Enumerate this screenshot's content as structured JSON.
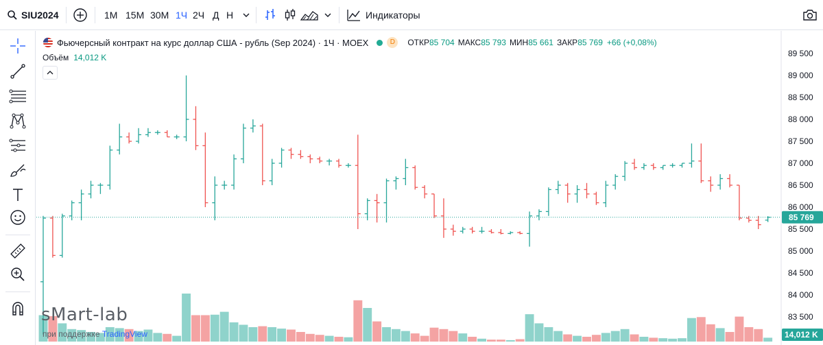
{
  "toolbar": {
    "symbol": "SIU2024",
    "intervals": [
      "1M",
      "15M",
      "30M",
      "1Ч",
      "2Ч",
      "Д",
      "Н"
    ],
    "active_interval": "1Ч",
    "indicators_label": "Индикаторы"
  },
  "sidebar": {
    "tools": [
      "crosshair-icon",
      "trendline-icon",
      "fib-icon",
      "pattern-icon",
      "forecast-icon",
      "brush-icon",
      "text-icon",
      "emoji-icon",
      "ruler-icon",
      "zoom-icon",
      "magnet-icon"
    ]
  },
  "legend": {
    "title": "Фьючерсный контракт на курс доллар США - рубль (Sep 2024) · 1Ч · MOEX",
    "badge": "D",
    "open_label": "ОТКР",
    "open": "85 704",
    "high_label": "МАКС",
    "high": "85 793",
    "low_label": "МИН",
    "low": "85 661",
    "close_label": "ЗАКР",
    "close": "85 769",
    "change": "+66 (+0,08%)",
    "volume_label": "Объём",
    "volume": "14,012 K"
  },
  "watermark": "sMart-lab",
  "support": {
    "prefix": "при поддержке ",
    "brand": "TradingView"
  },
  "colors": {
    "up": "#26a69a",
    "down": "#ef5350",
    "vol_up": "#8fd3cb",
    "vol_down": "#f4a3a3",
    "price_line": "#26a69a",
    "accent": "#2962ff"
  },
  "chart_data": {
    "type": "ohlc",
    "y_axis": {
      "min": 83000,
      "max": 89500,
      "ticks": [
        "89500",
        "89000",
        "88500",
        "88000",
        "87500",
        "87000",
        "86500",
        "86000",
        "85500",
        "85000",
        "84500",
        "84000",
        "83500"
      ]
    },
    "last_price_label": "85 769",
    "last_price": 85769,
    "volume_badge": "14,012 K",
    "bars": [
      {
        "o": 84300,
        "h": 85800,
        "l": 83100,
        "c": 85750,
        "v": 0.55
      },
      {
        "o": 85750,
        "h": 85800,
        "l": 84850,
        "c": 84900,
        "v": 0.53
      },
      {
        "o": 84900,
        "h": 85850,
        "l": 84850,
        "c": 85800,
        "v": 0.38
      },
      {
        "o": 85800,
        "h": 86150,
        "l": 85700,
        "c": 86100,
        "v": 0.26
      },
      {
        "o": 86100,
        "h": 86400,
        "l": 85700,
        "c": 86300,
        "v": 0.24
      },
      {
        "o": 86300,
        "h": 86600,
        "l": 86200,
        "c": 86500,
        "v": 0.2
      },
      {
        "o": 86500,
        "h": 86550,
        "l": 86300,
        "c": 86500,
        "v": 0.18
      },
      {
        "o": 86500,
        "h": 87400,
        "l": 86400,
        "c": 87300,
        "v": 0.3
      },
      {
        "o": 87300,
        "h": 87900,
        "l": 87200,
        "c": 87600,
        "v": 0.28
      },
      {
        "o": 87600,
        "h": 87700,
        "l": 87450,
        "c": 87500,
        "v": 0.26
      },
      {
        "o": 87500,
        "h": 87800,
        "l": 87450,
        "c": 87650,
        "v": 0.22
      },
      {
        "o": 87650,
        "h": 87800,
        "l": 87600,
        "c": 87700,
        "v": 0.25
      },
      {
        "o": 87700,
        "h": 87750,
        "l": 87650,
        "c": 87700,
        "v": 0.18
      },
      {
        "o": 87700,
        "h": 87750,
        "l": 87600,
        "c": 87600,
        "v": 0.16
      },
      {
        "o": 87600,
        "h": 87650,
        "l": 87550,
        "c": 87600,
        "v": 0.12
      },
      {
        "o": 87600,
        "h": 89000,
        "l": 87500,
        "c": 88000,
        "v": 1.0
      },
      {
        "o": 88000,
        "h": 88300,
        "l": 87300,
        "c": 87400,
        "v": 0.55
      },
      {
        "o": 87400,
        "h": 87700,
        "l": 86000,
        "c": 86100,
        "v": 0.55
      },
      {
        "o": 86100,
        "h": 86700,
        "l": 85700,
        "c": 86500,
        "v": 0.56
      },
      {
        "o": 86500,
        "h": 86600,
        "l": 86400,
        "c": 86500,
        "v": 0.62
      },
      {
        "o": 86500,
        "h": 87200,
        "l": 86400,
        "c": 87100,
        "v": 0.4
      },
      {
        "o": 87100,
        "h": 87900,
        "l": 87000,
        "c": 87800,
        "v": 0.35
      },
      {
        "o": 87800,
        "h": 88000,
        "l": 87700,
        "c": 87850,
        "v": 0.3
      },
      {
        "o": 87850,
        "h": 87900,
        "l": 86500,
        "c": 86600,
        "v": 0.32
      },
      {
        "o": 86600,
        "h": 87100,
        "l": 86500,
        "c": 87000,
        "v": 0.3
      },
      {
        "o": 87000,
        "h": 87350,
        "l": 86900,
        "c": 87300,
        "v": 0.27
      },
      {
        "o": 87300,
        "h": 87350,
        "l": 87100,
        "c": 87200,
        "v": 0.25
      },
      {
        "o": 87200,
        "h": 87300,
        "l": 87100,
        "c": 87150,
        "v": 0.2
      },
      {
        "o": 87150,
        "h": 87200,
        "l": 87000,
        "c": 87100,
        "v": 0.16
      },
      {
        "o": 87100,
        "h": 87150,
        "l": 87000,
        "c": 87050,
        "v": 0.14
      },
      {
        "o": 87050,
        "h": 87100,
        "l": 86950,
        "c": 87050,
        "v": 0.12
      },
      {
        "o": 87050,
        "h": 87100,
        "l": 86900,
        "c": 86950,
        "v": 0.1
      },
      {
        "o": 86950,
        "h": 87000,
        "l": 86900,
        "c": 86950,
        "v": 0.09
      },
      {
        "o": 86950,
        "h": 87650,
        "l": 85500,
        "c": 85850,
        "v": 0.86
      },
      {
        "o": 85850,
        "h": 86200,
        "l": 85700,
        "c": 86150,
        "v": 0.7
      },
      {
        "o": 86150,
        "h": 86300,
        "l": 85650,
        "c": 86100,
        "v": 0.42
      },
      {
        "o": 86100,
        "h": 86650,
        "l": 85650,
        "c": 86600,
        "v": 0.3
      },
      {
        "o": 86600,
        "h": 86700,
        "l": 86400,
        "c": 86650,
        "v": 0.26
      },
      {
        "o": 86650,
        "h": 87100,
        "l": 86500,
        "c": 86900,
        "v": 0.22
      },
      {
        "o": 86900,
        "h": 86950,
        "l": 86400,
        "c": 86450,
        "v": 0.17
      },
      {
        "o": 86450,
        "h": 86500,
        "l": 86200,
        "c": 86300,
        "v": 0.12
      },
      {
        "o": 86300,
        "h": 86300,
        "l": 85750,
        "c": 85800,
        "v": 0.29
      },
      {
        "o": 85800,
        "h": 86200,
        "l": 85300,
        "c": 85500,
        "v": 0.26
      },
      {
        "o": 85500,
        "h": 85600,
        "l": 85350,
        "c": 85450,
        "v": 0.22
      },
      {
        "o": 85450,
        "h": 85550,
        "l": 85400,
        "c": 85500,
        "v": 0.17
      },
      {
        "o": 85500,
        "h": 85550,
        "l": 85400,
        "c": 85450,
        "v": 0.1
      },
      {
        "o": 85450,
        "h": 85550,
        "l": 85400,
        "c": 85450,
        "v": 0.06
      },
      {
        "o": 85450,
        "h": 85500,
        "l": 85400,
        "c": 85420,
        "v": 0.04
      },
      {
        "o": 85420,
        "h": 85500,
        "l": 85380,
        "c": 85400,
        "v": 0.04
      },
      {
        "o": 85400,
        "h": 85450,
        "l": 85380,
        "c": 85420,
        "v": 0.03
      },
      {
        "o": 85420,
        "h": 85450,
        "l": 85380,
        "c": 85400,
        "v": 0.05
      },
      {
        "o": 85400,
        "h": 85900,
        "l": 85100,
        "c": 85800,
        "v": 0.57
      },
      {
        "o": 85800,
        "h": 85950,
        "l": 85700,
        "c": 85900,
        "v": 0.38
      },
      {
        "o": 85900,
        "h": 86450,
        "l": 85800,
        "c": 86400,
        "v": 0.3
      },
      {
        "o": 86400,
        "h": 86600,
        "l": 86300,
        "c": 86500,
        "v": 0.22
      },
      {
        "o": 86500,
        "h": 86550,
        "l": 86100,
        "c": 86300,
        "v": 0.15
      },
      {
        "o": 86300,
        "h": 86500,
        "l": 86100,
        "c": 86400,
        "v": 0.12
      },
      {
        "o": 86400,
        "h": 86550,
        "l": 86200,
        "c": 86300,
        "v": 0.1
      },
      {
        "o": 86300,
        "h": 86350,
        "l": 86050,
        "c": 86100,
        "v": 0.14
      },
      {
        "o": 86100,
        "h": 86600,
        "l": 86000,
        "c": 86500,
        "v": 0.18
      },
      {
        "o": 86500,
        "h": 86750,
        "l": 86400,
        "c": 86700,
        "v": 0.22
      },
      {
        "o": 86700,
        "h": 87050,
        "l": 86600,
        "c": 87000,
        "v": 0.26
      },
      {
        "o": 87000,
        "h": 87100,
        "l": 86850,
        "c": 86900,
        "v": 0.15
      },
      {
        "o": 86900,
        "h": 87000,
        "l": 86850,
        "c": 86950,
        "v": 0.1
      },
      {
        "o": 86950,
        "h": 87000,
        "l": 86850,
        "c": 86900,
        "v": 0.08
      },
      {
        "o": 86900,
        "h": 86950,
        "l": 86850,
        "c": 86950,
        "v": 0.07
      },
      {
        "o": 86950,
        "h": 87000,
        "l": 86900,
        "c": 86950,
        "v": 0.06
      },
      {
        "o": 86950,
        "h": 87000,
        "l": 86900,
        "c": 87000,
        "v": 0.07
      },
      {
        "o": 87000,
        "h": 87450,
        "l": 86900,
        "c": 87050,
        "v": 0.49
      },
      {
        "o": 87050,
        "h": 87450,
        "l": 86550,
        "c": 86600,
        "v": 0.51
      },
      {
        "o": 86600,
        "h": 86700,
        "l": 86350,
        "c": 86500,
        "v": 0.36
      },
      {
        "o": 86500,
        "h": 86750,
        "l": 86400,
        "c": 86650,
        "v": 0.28
      },
      {
        "o": 86650,
        "h": 86750,
        "l": 86450,
        "c": 86500,
        "v": 0.2
      },
      {
        "o": 86500,
        "h": 86500,
        "l": 85700,
        "c": 85750,
        "v": 0.52
      },
      {
        "o": 85750,
        "h": 85800,
        "l": 85650,
        "c": 85700,
        "v": 0.3
      },
      {
        "o": 85700,
        "h": 85800,
        "l": 85500,
        "c": 85600,
        "v": 0.26
      },
      {
        "o": 85704,
        "h": 85793,
        "l": 85661,
        "c": 85769,
        "v": 0.08
      }
    ]
  }
}
